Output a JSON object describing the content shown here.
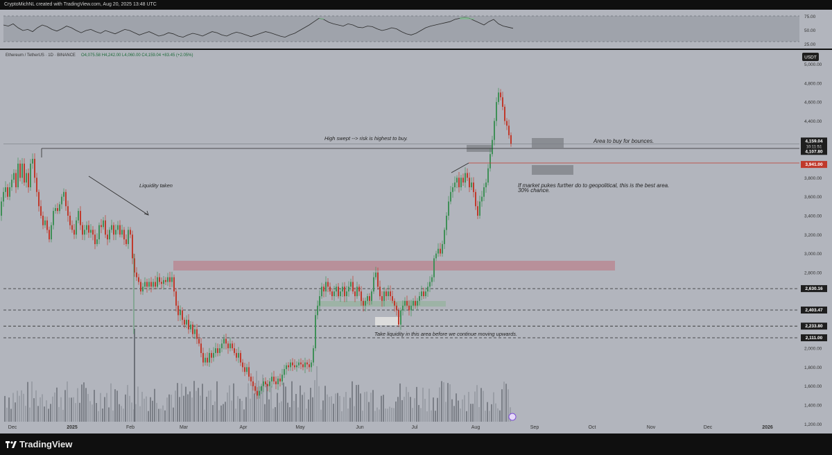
{
  "header": {
    "credit": "CryptoMichNL created with TradingView.com, Aug 20, 2025 13:48 UTC"
  },
  "symbol_line": {
    "symbol": "Ethereum / TetherUS · 1D · BINANCE",
    "ohlc": "O4,075.58  H4,242.00  L4,060.00  C4,159.04  +83.45 (+2.05%)"
  },
  "currency_badge": "USDT",
  "footer": {
    "logo_text": "TradingView"
  },
  "chart_data": [
    {
      "type": "line",
      "series": [
        {
          "values": [
            60,
            58,
            62,
            55,
            50,
            52,
            48,
            55,
            60,
            57,
            52,
            49,
            53,
            58,
            55,
            50,
            46,
            50,
            52,
            48,
            45,
            50,
            47,
            44,
            48,
            52,
            50,
            46,
            42,
            45,
            48,
            44,
            40,
            42,
            46,
            44,
            40,
            38,
            42,
            45,
            43,
            40,
            44,
            48,
            46,
            42,
            40,
            44,
            47,
            45,
            42,
            39,
            42,
            45,
            48,
            46,
            43,
            40,
            38,
            42,
            45,
            50,
            55,
            60,
            66,
            72,
            70,
            65,
            62,
            60,
            58,
            62,
            60,
            56,
            55,
            58,
            57,
            53,
            50,
            52,
            55,
            53,
            48,
            44,
            42,
            45,
            50,
            55,
            58,
            60,
            62,
            64,
            66,
            70,
            72,
            74,
            72,
            68,
            64,
            60,
            66,
            70,
            62,
            58,
            56,
            54
          ]
        }
      ],
      "ylim": [
        20,
        85
      ],
      "yticks": [
        "75.00",
        "50.00",
        "25.00"
      ],
      "bands": [
        30,
        70
      ]
    },
    {
      "type": "candlestick",
      "x_ticks": [
        "Dec",
        "2025",
        "Feb",
        "Mar",
        "Apr",
        "May",
        "Jun",
        "Jul",
        "Aug",
        "Sep",
        "Oct",
        "Nov",
        "Dec",
        "2026"
      ],
      "y_ticks": [
        "5,000.00",
        "4,800.00",
        "4,600.00",
        "4,400.00",
        "4,200.00",
        "3,800.00",
        "3,600.00",
        "3,400.00",
        "3,200.00",
        "3,000.00",
        "2,800.00",
        "2,000.00",
        "1,800.00",
        "1,600.00",
        "1,400.00",
        "1,200.00"
      ],
      "ylim": [
        1100,
        5150
      ],
      "close_path": [
        [
          0,
          3400
        ],
        [
          3,
          3550
        ],
        [
          6,
          3650
        ],
        [
          9,
          3700
        ],
        [
          12,
          3600
        ],
        [
          15,
          3700
        ],
        [
          18,
          3780
        ],
        [
          21,
          3850
        ],
        [
          24,
          3700
        ],
        [
          27,
          3950
        ],
        [
          30,
          3800
        ],
        [
          33,
          3950
        ],
        [
          36,
          3750
        ],
        [
          39,
          3850
        ],
        [
          42,
          3700
        ],
        [
          45,
          3950
        ],
        [
          48,
          4000
        ],
        [
          51,
          3800
        ],
        [
          54,
          3650
        ],
        [
          57,
          3500
        ],
        [
          60,
          3400
        ],
        [
          63,
          3300
        ],
        [
          66,
          3350
        ],
        [
          69,
          3250
        ],
        [
          72,
          3150
        ],
        [
          75,
          3300
        ],
        [
          78,
          3450
        ],
        [
          81,
          3480
        ],
        [
          84,
          3450
        ],
        [
          87,
          3520
        ],
        [
          90,
          3600
        ],
        [
          93,
          3650
        ],
        [
          96,
          3500
        ],
        [
          99,
          3400
        ],
        [
          102,
          3300
        ],
        [
          105,
          3250
        ],
        [
          108,
          3200
        ],
        [
          111,
          3350
        ],
        [
          114,
          3450
        ],
        [
          117,
          3300
        ],
        [
          120,
          3200
        ],
        [
          123,
          3250
        ],
        [
          126,
          3300
        ],
        [
          129,
          3220
        ],
        [
          132,
          3250
        ],
        [
          135,
          3200
        ],
        [
          138,
          3100
        ],
        [
          141,
          3150
        ],
        [
          144,
          3300
        ],
        [
          147,
          3280
        ],
        [
          150,
          3350
        ],
        [
          153,
          3200
        ],
        [
          156,
          3150
        ],
        [
          159,
          3250
        ],
        [
          162,
          3300
        ],
        [
          165,
          3200
        ],
        [
          168,
          3250
        ],
        [
          171,
          3300
        ],
        [
          174,
          3200
        ],
        [
          177,
          3250
        ],
        [
          180,
          3150
        ],
        [
          183,
          3100
        ],
        [
          186,
          3250
        ],
        [
          189,
          3200
        ],
        [
          192,
          2950
        ],
        [
          195,
          2800
        ],
        [
          198,
          2750
        ],
        [
          201,
          2700
        ],
        [
          204,
          2600
        ],
        [
          207,
          2650
        ],
        [
          210,
          2700
        ],
        [
          213,
          2650
        ],
        [
          216,
          2700
        ],
        [
          219,
          2650
        ],
        [
          222,
          2700
        ],
        [
          225,
          2650
        ],
        [
          228,
          2750
        ],
        [
          231,
          2700
        ],
        [
          234,
          2680
        ],
        [
          237,
          2720
        ],
        [
          240,
          2700
        ],
        [
          243,
          2750
        ],
        [
          246,
          2700
        ],
        [
          249,
          2750
        ],
        [
          252,
          2600
        ],
        [
          255,
          2450
        ],
        [
          258,
          2350
        ],
        [
          261,
          2400
        ],
        [
          264,
          2300
        ],
        [
          267,
          2250
        ],
        [
          270,
          2300
        ],
        [
          273,
          2200
        ],
        [
          276,
          2250
        ],
        [
          279,
          2150
        ],
        [
          282,
          2200
        ],
        [
          285,
          2100
        ],
        [
          288,
          2050
        ],
        [
          291,
          1950
        ],
        [
          294,
          1850
        ],
        [
          297,
          1900
        ],
        [
          300,
          1850
        ],
        [
          303,
          1950
        ],
        [
          306,
          1900
        ],
        [
          309,
          1950
        ],
        [
          312,
          2000
        ],
        [
          315,
          1950
        ],
        [
          318,
          2000
        ],
        [
          321,
          2050
        ],
        [
          324,
          2100
        ],
        [
          327,
          2050
        ],
        [
          330,
          2000
        ],
        [
          333,
          2050
        ],
        [
          336,
          2000
        ],
        [
          339,
          1950
        ],
        [
          342,
          1900
        ],
        [
          345,
          1950
        ],
        [
          348,
          1850
        ],
        [
          351,
          1800
        ],
        [
          354,
          1750
        ],
        [
          357,
          1800
        ],
        [
          360,
          1700
        ],
        [
          363,
          1650
        ],
        [
          366,
          1600
        ],
        [
          369,
          1550
        ],
        [
          372,
          1500
        ],
        [
          375,
          1550
        ],
        [
          378,
          1600
        ],
        [
          381,
          1650
        ],
        [
          384,
          1620
        ],
        [
          387,
          1600
        ],
        [
          390,
          1650
        ],
        [
          393,
          1700
        ],
        [
          396,
          1650
        ],
        [
          399,
          1620
        ],
        [
          402,
          1680
        ],
        [
          405,
          1650
        ],
        [
          408,
          1720
        ],
        [
          411,
          1780
        ],
        [
          414,
          1820
        ],
        [
          417,
          1800
        ],
        [
          420,
          1850
        ],
        [
          423,
          1820
        ],
        [
          426,
          1800
        ],
        [
          429,
          1820
        ],
        [
          432,
          1850
        ],
        [
          435,
          1830
        ],
        [
          438,
          1800
        ],
        [
          441,
          1850
        ],
        [
          444,
          1830
        ],
        [
          447,
          1800
        ],
        [
          450,
          1850
        ],
        [
          453,
          2000
        ],
        [
          456,
          2350
        ],
        [
          459,
          2450
        ],
        [
          462,
          2550
        ],
        [
          465,
          2650
        ],
        [
          468,
          2600
        ],
        [
          471,
          2700
        ],
        [
          474,
          2650
        ],
        [
          477,
          2600
        ],
        [
          480,
          2550
        ],
        [
          483,
          2600
        ],
        [
          486,
          2650
        ],
        [
          489,
          2550
        ],
        [
          492,
          2600
        ],
        [
          495,
          2650
        ],
        [
          498,
          2550
        ],
        [
          501,
          2600
        ],
        [
          504,
          2650
        ],
        [
          507,
          2700
        ],
        [
          510,
          2600
        ],
        [
          513,
          2550
        ],
        [
          516,
          2650
        ],
        [
          519,
          2600
        ],
        [
          522,
          2500
        ],
        [
          525,
          2450
        ],
        [
          528,
          2500
        ],
        [
          531,
          2550
        ],
        [
          534,
          2500
        ],
        [
          537,
          2600
        ],
        [
          540,
          2750
        ],
        [
          543,
          2800
        ],
        [
          546,
          2650
        ],
        [
          549,
          2550
        ],
        [
          552,
          2500
        ],
        [
          555,
          2600
        ],
        [
          558,
          2550
        ],
        [
          561,
          2600
        ],
        [
          564,
          2550
        ],
        [
          567,
          2500
        ],
        [
          570,
          2450
        ],
        [
          573,
          2400
        ],
        [
          576,
          2250
        ],
        [
          579,
          2400
        ],
        [
          582,
          2450
        ],
        [
          585,
          2500
        ],
        [
          588,
          2450
        ],
        [
          591,
          2400
        ],
        [
          594,
          2450
        ],
        [
          597,
          2500
        ],
        [
          600,
          2450
        ],
        [
          603,
          2500
        ],
        [
          606,
          2550
        ],
        [
          609,
          2600
        ],
        [
          612,
          2550
        ],
        [
          615,
          2600
        ],
        [
          618,
          2650
        ],
        [
          621,
          2700
        ],
        [
          624,
          2750
        ],
        [
          627,
          2950
        ],
        [
          630,
          3000
        ],
        [
          633,
          3050
        ],
        [
          636,
          3000
        ],
        [
          639,
          3100
        ],
        [
          642,
          3250
        ],
        [
          645,
          3400
        ],
        [
          648,
          3550
        ],
        [
          651,
          3650
        ],
        [
          654,
          3700
        ],
        [
          657,
          3750
        ],
        [
          660,
          3800
        ],
        [
          663,
          3700
        ],
        [
          666,
          3800
        ],
        [
          669,
          3750
        ],
        [
          672,
          3850
        ],
        [
          675,
          3800
        ],
        [
          678,
          3700
        ],
        [
          681,
          3750
        ],
        [
          684,
          3650
        ],
        [
          687,
          3500
        ],
        [
          690,
          3400
        ],
        [
          693,
          3550
        ],
        [
          696,
          3600
        ],
        [
          699,
          3700
        ],
        [
          702,
          3750
        ],
        [
          705,
          3900
        ],
        [
          708,
          4050
        ],
        [
          711,
          4200
        ],
        [
          714,
          4400
        ],
        [
          717,
          4600
        ],
        [
          720,
          4700
        ],
        [
          723,
          4650
        ],
        [
          726,
          4550
        ],
        [
          729,
          4400
        ],
        [
          732,
          4350
        ],
        [
          735,
          4250
        ],
        [
          738,
          4159
        ]
      ],
      "price_levels": [
        {
          "label": "4,159.04",
          "price": 4159.04,
          "sub": "10:11:51"
        },
        {
          "label": "4,107.80",
          "price": 4107.8
        },
        {
          "label": "3,941.00",
          "price": 3941.0
        },
        {
          "label": "2,630.16",
          "price": 2630.16
        },
        {
          "label": "2,403.47",
          "price": 2403.47
        },
        {
          "label": "2,233.80",
          "price": 2233.8
        },
        {
          "label": "2,111.00",
          "price": 2111.0
        }
      ],
      "annotations": [
        "High swept --> risk is highest to buy.",
        "Liquidity taken",
        "Area to buy for bounces.",
        "If market pukes further do to geopolitical, this is the best area.",
        "30% chance.",
        "Take liquidity in this area before we continue moving upwards."
      ]
    }
  ]
}
